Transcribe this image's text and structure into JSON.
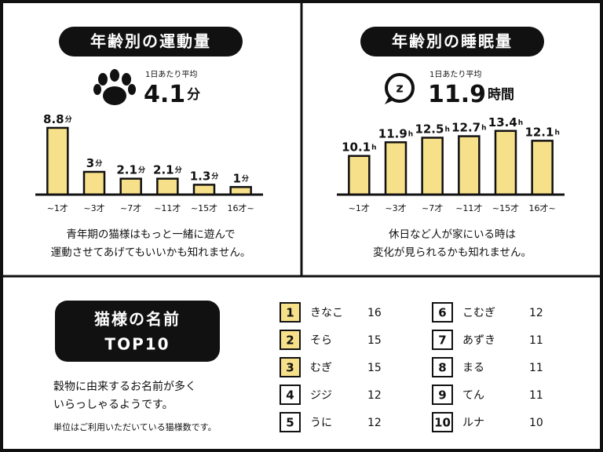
{
  "chart_data": [
    {
      "type": "bar",
      "title": "年齢別の運動量",
      "average_label": "1日あたり平均",
      "average": 4.1,
      "average_unit": "分",
      "categories": [
        "~1才",
        "~3才",
        "~7才",
        "~11才",
        "~15才",
        "16才~"
      ],
      "values": [
        8.8,
        3,
        2.1,
        2.1,
        1.3,
        1
      ],
      "unit": "分",
      "color": "#f7e08a",
      "ylim": [
        0,
        9
      ],
      "caption": [
        "青年期の猫様はもっと一緒に遊んで",
        "運動させてあげてもいいかも知れません。"
      ]
    },
    {
      "type": "bar",
      "title": "年齢別の睡眠量",
      "average_label": "1日あたり平均",
      "average": 11.9,
      "average_unit": "時間",
      "categories": [
        "~1才",
        "~3才",
        "~7才",
        "~11才",
        "~15才",
        "16才~"
      ],
      "values": [
        10.1,
        11.9,
        12.5,
        12.7,
        13.4,
        12.1
      ],
      "unit": "h",
      "color": "#f7e08a",
      "ylim": [
        5,
        14
      ],
      "caption": [
        "休日など人が家にいる時は",
        "変化が見られるかも知れません。"
      ]
    }
  ],
  "names": {
    "title": [
      "猫様の名前",
      "TOP10"
    ],
    "description": [
      "穀物に由来するお名前が多く",
      "いらっしゃるようです。"
    ],
    "note": "単位はご利用いただいている猫様数です。",
    "ranking": [
      {
        "rank": 1,
        "name": "きなこ",
        "count": 16
      },
      {
        "rank": 2,
        "name": "そら",
        "count": 15
      },
      {
        "rank": 3,
        "name": "むぎ",
        "count": 15
      },
      {
        "rank": 4,
        "name": "ジジ",
        "count": 12
      },
      {
        "rank": 5,
        "name": "うに",
        "count": 12
      },
      {
        "rank": 6,
        "name": "こむぎ",
        "count": 12
      },
      {
        "rank": 7,
        "name": "あずき",
        "count": 11
      },
      {
        "rank": 8,
        "name": "まる",
        "count": 11
      },
      {
        "rank": 9,
        "name": "てん",
        "count": 11
      },
      {
        "rank": 10,
        "name": "ルナ",
        "count": 10
      }
    ]
  }
}
